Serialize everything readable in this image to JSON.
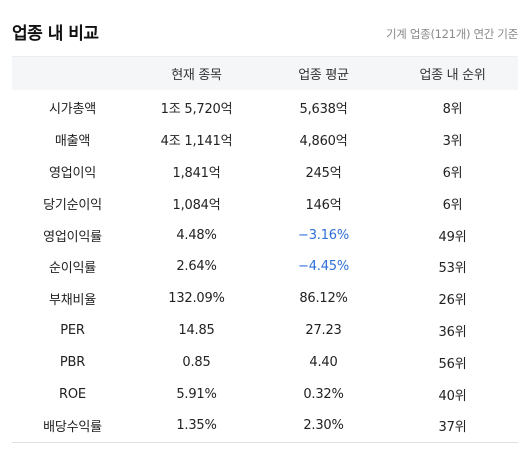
{
  "title": "업종 내 비교",
  "subtitle": "기계 업종(121개) 연간 기준",
  "columns": [
    "",
    "현재 종목",
    "업종 평균",
    "업종 내 순위"
  ],
  "rows": [
    {
      "metric": "시가총액",
      "current": "1조 5,720억",
      "average": "5,638억",
      "rank": "8위",
      "avg_negative": false
    },
    {
      "metric": "매출액",
      "current": "4조 1,141억",
      "average": "4,860억",
      "rank": "3위",
      "avg_negative": false
    },
    {
      "metric": "영업이익",
      "current": "1,841억",
      "average": "245억",
      "rank": "6위",
      "avg_negative": false
    },
    {
      "metric": "당기순이익",
      "current": "1,084억",
      "average": "146억",
      "rank": "6위",
      "avg_negative": false
    },
    {
      "metric": "영업이익률",
      "current": "4.48%",
      "average": "−3.16%",
      "rank": "49위",
      "avg_negative": true
    },
    {
      "metric": "순이익률",
      "current": "2.64%",
      "average": "−4.45%",
      "rank": "53위",
      "avg_negative": true
    },
    {
      "metric": "부채비율",
      "current": "132.09%",
      "average": "86.12%",
      "rank": "26위",
      "avg_negative": false
    },
    {
      "metric": "PER",
      "current": "14.85",
      "average": "27.23",
      "rank": "36위",
      "avg_negative": false
    },
    {
      "metric": "PBR",
      "current": "0.85",
      "average": "4.40",
      "rank": "56위",
      "avg_negative": false
    },
    {
      "metric": "ROE",
      "current": "5.91%",
      "average": "0.32%",
      "rank": "40위",
      "avg_negative": false
    },
    {
      "metric": "배당수익률",
      "current": "1.35%",
      "average": "2.30%",
      "rank": "37위",
      "avg_negative": false
    }
  ],
  "colors": {
    "negative": "#2e6fd8",
    "header_bg": "#f5f6f8",
    "muted": "#8a8a8a"
  }
}
